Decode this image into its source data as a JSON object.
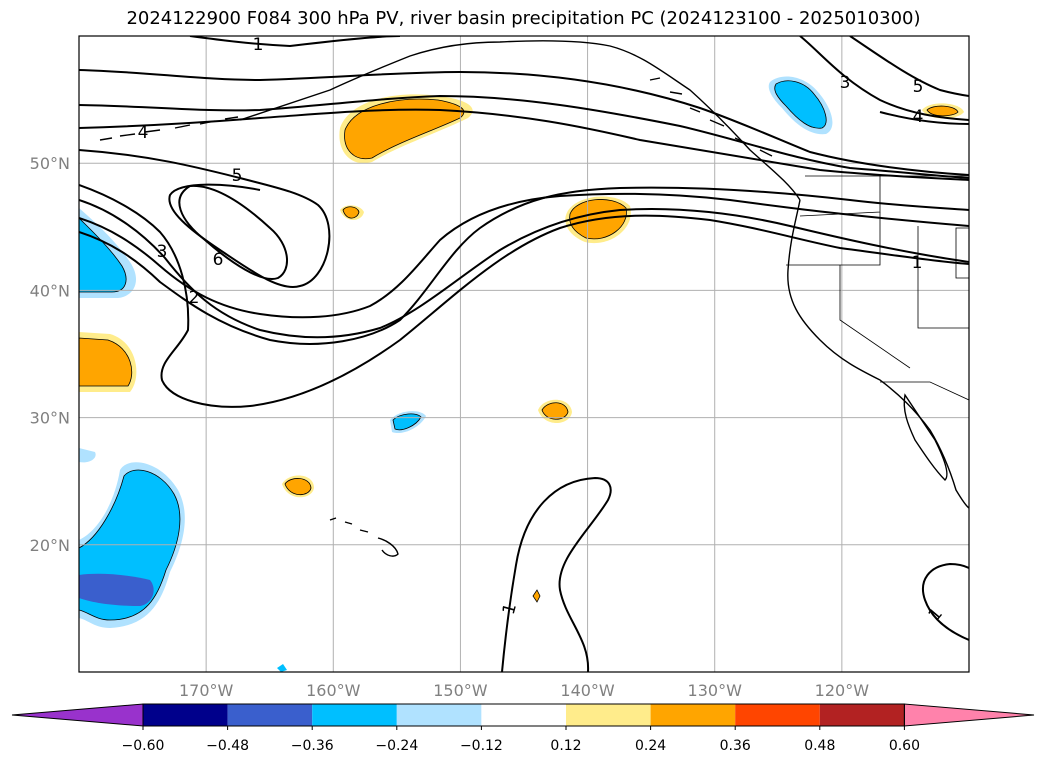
{
  "title": "2024122900 F084 300 hPa PV, river basin precipitation PC (2024123100 - 2025010300)",
  "map": {
    "projection": "PlateCarree",
    "lon_range": [
      -180,
      -110
    ],
    "lat_range": [
      10,
      60
    ],
    "lat_ticks": [
      {
        "value": 20,
        "label": "20°N"
      },
      {
        "value": 30,
        "label": "30°N"
      },
      {
        "value": 40,
        "label": "40°N"
      },
      {
        "value": 50,
        "label": "50°N"
      }
    ],
    "lon_ticks": [
      {
        "value": -170,
        "label": "170°W"
      },
      {
        "value": -160,
        "label": "160°W"
      },
      {
        "value": -150,
        "label": "150°W"
      },
      {
        "value": -140,
        "label": "140°W"
      },
      {
        "value": -130,
        "label": "130°W"
      },
      {
        "value": -120,
        "label": "120°W"
      }
    ],
    "contour_labels": [
      "1",
      "2",
      "3",
      "4",
      "5",
      "6"
    ],
    "colors": {
      "coast": "#000000",
      "grid": "#b0b0b0",
      "pv_contour": "#000000"
    }
  },
  "colorbar": {
    "labels": [
      "−0.60",
      "−0.48",
      "−0.36",
      "−0.24",
      "−0.12",
      "0.12",
      "0.24",
      "0.36",
      "0.48",
      "0.60"
    ],
    "colors": [
      "#9932cc",
      "#00008b",
      "#3a5fcd",
      "#00bfff",
      "#b0e2ff",
      "#ffffff",
      "#ffec8b",
      "#ffa500",
      "#ff4500",
      "#b22222",
      "#ff82ab"
    ]
  }
}
